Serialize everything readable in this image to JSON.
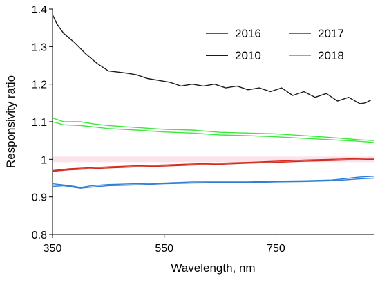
{
  "chart_data": {
    "type": "line",
    "title": "",
    "xlabel": "Wavelength, nm",
    "ylabel": "Responsivity ratio",
    "xlim": [
      350,
      925
    ],
    "ylim": [
      0.8,
      1.4
    ],
    "xticks": [
      350,
      550,
      750
    ],
    "yticks": [
      0.8,
      0.9,
      1,
      1.1,
      1.2,
      1.3,
      1.4
    ],
    "ytick_labels": [
      "0.8",
      "0.9",
      "1",
      "1.1",
      "1.2",
      "1.3",
      "1.4"
    ],
    "grid": false,
    "legend_position": "top-right",
    "legend": [
      {
        "label": "2016",
        "color": "#d42a1e"
      },
      {
        "label": "2017",
        "color": "#2e7fd6"
      },
      {
        "label": "2010",
        "color": "#1a1a1a"
      },
      {
        "label": "2018",
        "color": "#3ee63e"
      }
    ],
    "series": [
      {
        "name": "2010",
        "color": "#1a1a1a",
        "points": [
          [
            350,
            1.385
          ],
          [
            358,
            1.36
          ],
          [
            370,
            1.335
          ],
          [
            390,
            1.31
          ],
          [
            410,
            1.28
          ],
          [
            430,
            1.255
          ],
          [
            450,
            1.235
          ],
          [
            480,
            1.23
          ],
          [
            500,
            1.225
          ],
          [
            520,
            1.215
          ],
          [
            540,
            1.21
          ],
          [
            560,
            1.205
          ],
          [
            580,
            1.195
          ],
          [
            600,
            1.2
          ],
          [
            620,
            1.195
          ],
          [
            640,
            1.2
          ],
          [
            660,
            1.19
          ],
          [
            680,
            1.195
          ],
          [
            700,
            1.185
          ],
          [
            720,
            1.19
          ],
          [
            740,
            1.18
          ],
          [
            760,
            1.19
          ],
          [
            780,
            1.17
          ],
          [
            800,
            1.18
          ],
          [
            820,
            1.165
          ],
          [
            840,
            1.175
          ],
          [
            860,
            1.155
          ],
          [
            880,
            1.165
          ],
          [
            900,
            1.148
          ],
          [
            910,
            1.15
          ],
          [
            920,
            1.158
          ]
        ]
      },
      {
        "name": "2018",
        "color": "#3ee63e",
        "points": [
          [
            350,
            1.11
          ],
          [
            370,
            1.1
          ],
          [
            400,
            1.1
          ],
          [
            420,
            1.095
          ],
          [
            450,
            1.09
          ],
          [
            500,
            1.085
          ],
          [
            550,
            1.08
          ],
          [
            600,
            1.078
          ],
          [
            650,
            1.072
          ],
          [
            700,
            1.07
          ],
          [
            750,
            1.068
          ],
          [
            800,
            1.063
          ],
          [
            850,
            1.058
          ],
          [
            900,
            1.052
          ],
          [
            925,
            1.05
          ]
        ]
      },
      {
        "name": "2018",
        "color": "#3ee63e",
        "points": [
          [
            350,
            1.1
          ],
          [
            370,
            1.092
          ],
          [
            400,
            1.09
          ],
          [
            420,
            1.087
          ],
          [
            450,
            1.082
          ],
          [
            500,
            1.078
          ],
          [
            550,
            1.073
          ],
          [
            600,
            1.07
          ],
          [
            650,
            1.065
          ],
          [
            700,
            1.063
          ],
          [
            750,
            1.06
          ],
          [
            800,
            1.056
          ],
          [
            850,
            1.052
          ],
          [
            900,
            1.048
          ],
          [
            925,
            1.045
          ]
        ]
      },
      {
        "name": "2016",
        "color": "#d42a1e",
        "points": [
          [
            350,
            0.97
          ],
          [
            380,
            0.975
          ],
          [
            420,
            0.978
          ],
          [
            450,
            0.98
          ],
          [
            500,
            0.983
          ],
          [
            550,
            0.985
          ],
          [
            600,
            0.988
          ],
          [
            650,
            0.99
          ],
          [
            700,
            0.992
          ],
          [
            750,
            0.995
          ],
          [
            800,
            0.998
          ],
          [
            850,
            1.0
          ],
          [
            900,
            1.002
          ],
          [
            925,
            1.003
          ]
        ]
      },
      {
        "name": "2016",
        "color": "#d42a1e",
        "points": [
          [
            350,
            0.968
          ],
          [
            380,
            0.972
          ],
          [
            420,
            0.975
          ],
          [
            450,
            0.977
          ],
          [
            500,
            0.98
          ],
          [
            550,
            0.982
          ],
          [
            600,
            0.985
          ],
          [
            650,
            0.987
          ],
          [
            700,
            0.99
          ],
          [
            750,
            0.992
          ],
          [
            800,
            0.995
          ],
          [
            850,
            0.997
          ],
          [
            900,
            0.999
          ],
          [
            925,
            1.0
          ]
        ]
      },
      {
        "name": "2017",
        "color": "#2e7fd6",
        "points": [
          [
            350,
            0.935
          ],
          [
            370,
            0.932
          ],
          [
            390,
            0.928
          ],
          [
            400,
            0.925
          ],
          [
            420,
            0.93
          ],
          [
            450,
            0.933
          ],
          [
            500,
            0.935
          ],
          [
            550,
            0.937
          ],
          [
            600,
            0.94
          ],
          [
            650,
            0.94
          ],
          [
            700,
            0.94
          ],
          [
            750,
            0.942
          ],
          [
            800,
            0.943
          ],
          [
            850,
            0.945
          ],
          [
            900,
            0.953
          ],
          [
            925,
            0.955
          ]
        ]
      },
      {
        "name": "2017",
        "color": "#2e7fd6",
        "points": [
          [
            350,
            0.928
          ],
          [
            370,
            0.93
          ],
          [
            390,
            0.925
          ],
          [
            400,
            0.923
          ],
          [
            420,
            0.926
          ],
          [
            450,
            0.93
          ],
          [
            500,
            0.932
          ],
          [
            550,
            0.935
          ],
          [
            600,
            0.937
          ],
          [
            650,
            0.938
          ],
          [
            700,
            0.938
          ],
          [
            750,
            0.94
          ],
          [
            800,
            0.941
          ],
          [
            850,
            0.943
          ],
          [
            900,
            0.948
          ],
          [
            925,
            0.95
          ]
        ]
      }
    ]
  }
}
